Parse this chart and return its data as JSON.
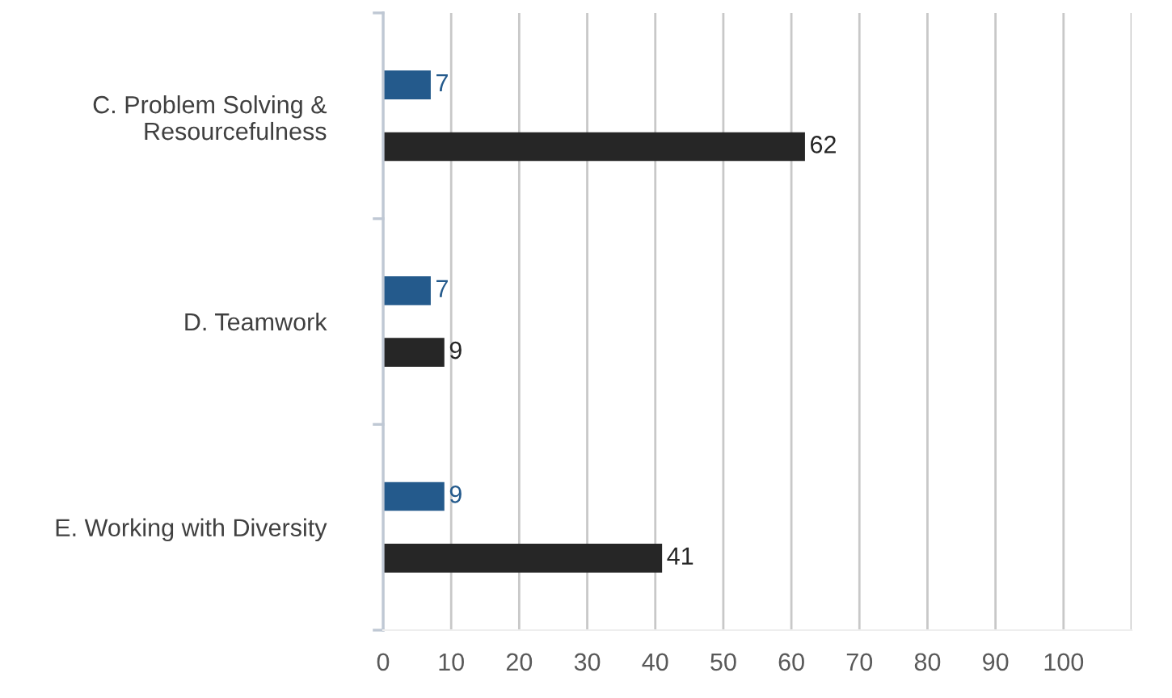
{
  "chart_data": {
    "type": "bar",
    "orientation": "horizontal",
    "categories": [
      "C. Problem Solving &\nResourcefulness",
      "D. Teamwork",
      "E. Working with Diversity"
    ],
    "series": [
      {
        "color": "#245a8c",
        "values": [
          7,
          7,
          9
        ]
      },
      {
        "color": "#262626",
        "values": [
          62,
          9,
          41
        ]
      }
    ],
    "xlim": [
      0,
      110
    ],
    "xticks": [
      0,
      10,
      20,
      30,
      40,
      50,
      60,
      70,
      80,
      90,
      100,
      {
        "value": 110,
        "label": null
      }
    ],
    "grid": "x",
    "data_labels": true
  }
}
